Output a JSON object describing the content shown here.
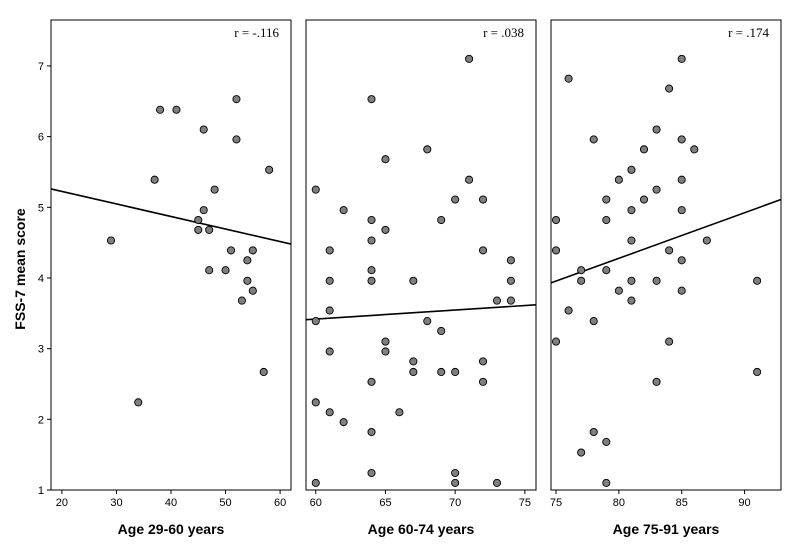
{
  "chart_data": {
    "type": "scatter",
    "ylabel": "FSS-7 mean score",
    "ylim": [
      1,
      7.65
    ],
    "yticks": [
      1,
      2,
      3,
      4,
      5,
      6,
      7
    ],
    "point_color": "#7f7f7f",
    "panels": [
      {
        "xlabel": "Age 29-60 years",
        "annotation": "r = -.116",
        "xlim": [
          18,
          62
        ],
        "xticks": [
          20,
          30,
          40,
          50,
          60
        ],
        "fit_line": {
          "x": [
            18,
            62
          ],
          "y": [
            5.26,
            4.48
          ]
        },
        "points": [
          {
            "x": 29,
            "y": 4.53
          },
          {
            "x": 34,
            "y": 2.24
          },
          {
            "x": 37,
            "y": 5.39
          },
          {
            "x": 38,
            "y": 6.38
          },
          {
            "x": 41,
            "y": 6.38
          },
          {
            "x": 45,
            "y": 4.82
          },
          {
            "x": 45,
            "y": 4.68
          },
          {
            "x": 46,
            "y": 6.1
          },
          {
            "x": 46,
            "y": 4.96
          },
          {
            "x": 47,
            "y": 4.68
          },
          {
            "x": 47,
            "y": 4.11
          },
          {
            "x": 48,
            "y": 5.25
          },
          {
            "x": 50,
            "y": 4.11
          },
          {
            "x": 51,
            "y": 4.39
          },
          {
            "x": 52,
            "y": 6.53
          },
          {
            "x": 52,
            "y": 5.96
          },
          {
            "x": 53,
            "y": 3.68
          },
          {
            "x": 54,
            "y": 4.25
          },
          {
            "x": 54,
            "y": 3.96
          },
          {
            "x": 55,
            "y": 4.39
          },
          {
            "x": 55,
            "y": 3.82
          },
          {
            "x": 57,
            "y": 2.67
          },
          {
            "x": 58,
            "y": 5.53
          }
        ]
      },
      {
        "xlabel": "Age 60-74 years",
        "annotation": "r = .038",
        "xlim": [
          59.3,
          75.8
        ],
        "xticks": [
          60,
          65,
          70,
          75
        ],
        "fit_line": {
          "x": [
            59.3,
            75.8
          ],
          "y": [
            3.41,
            3.62
          ]
        },
        "points": [
          {
            "x": 60,
            "y": 5.25
          },
          {
            "x": 60,
            "y": 3.39
          },
          {
            "x": 60,
            "y": 2.24
          },
          {
            "x": 60,
            "y": 1.1
          },
          {
            "x": 61,
            "y": 4.39
          },
          {
            "x": 61,
            "y": 3.96
          },
          {
            "x": 61,
            "y": 3.54
          },
          {
            "x": 61,
            "y": 2.96
          },
          {
            "x": 61,
            "y": 2.1
          },
          {
            "x": 62,
            "y": 4.96
          },
          {
            "x": 62,
            "y": 1.96
          },
          {
            "x": 64,
            "y": 6.53
          },
          {
            "x": 64,
            "y": 4.82
          },
          {
            "x": 64,
            "y": 4.53
          },
          {
            "x": 64,
            "y": 4.11
          },
          {
            "x": 64,
            "y": 3.96
          },
          {
            "x": 64,
            "y": 2.53
          },
          {
            "x": 64,
            "y": 1.82
          },
          {
            "x": 64,
            "y": 1.24
          },
          {
            "x": 65,
            "y": 5.68
          },
          {
            "x": 65,
            "y": 4.68
          },
          {
            "x": 65,
            "y": 3.1
          },
          {
            "x": 65,
            "y": 2.96
          },
          {
            "x": 66,
            "y": 2.1
          },
          {
            "x": 67,
            "y": 3.96
          },
          {
            "x": 67,
            "y": 2.82
          },
          {
            "x": 67,
            "y": 2.67
          },
          {
            "x": 68,
            "y": 5.82
          },
          {
            "x": 68,
            "y": 3.39
          },
          {
            "x": 69,
            "y": 4.82
          },
          {
            "x": 69,
            "y": 3.25
          },
          {
            "x": 69,
            "y": 2.67
          },
          {
            "x": 70,
            "y": 5.11
          },
          {
            "x": 70,
            "y": 2.67
          },
          {
            "x": 70,
            "y": 1.24
          },
          {
            "x": 70,
            "y": 1.1
          },
          {
            "x": 71,
            "y": 7.1
          },
          {
            "x": 71,
            "y": 5.39
          },
          {
            "x": 72,
            "y": 5.11
          },
          {
            "x": 72,
            "y": 4.39
          },
          {
            "x": 72,
            "y": 2.82
          },
          {
            "x": 72,
            "y": 2.53
          },
          {
            "x": 73,
            "y": 3.68
          },
          {
            "x": 73,
            "y": 1.1
          },
          {
            "x": 74,
            "y": 4.25
          },
          {
            "x": 74,
            "y": 3.96
          },
          {
            "x": 74,
            "y": 3.68
          }
        ]
      },
      {
        "xlabel": "Age 75-91 years",
        "annotation": "r = .174",
        "xlim": [
          74.6,
          92.9
        ],
        "xticks": [
          75,
          80,
          85,
          90
        ],
        "fit_line": {
          "x": [
            74.6,
            92.9
          ],
          "y": [
            3.93,
            5.11
          ]
        },
        "points": [
          {
            "x": 75,
            "y": 4.82
          },
          {
            "x": 75,
            "y": 4.39
          },
          {
            "x": 75,
            "y": 3.1
          },
          {
            "x": 76,
            "y": 6.82
          },
          {
            "x": 76,
            "y": 3.54
          },
          {
            "x": 77,
            "y": 4.11
          },
          {
            "x": 77,
            "y": 3.96
          },
          {
            "x": 77,
            "y": 1.53
          },
          {
            "x": 78,
            "y": 5.96
          },
          {
            "x": 78,
            "y": 3.39
          },
          {
            "x": 78,
            "y": 1.82
          },
          {
            "x": 79,
            "y": 5.11
          },
          {
            "x": 79,
            "y": 4.82
          },
          {
            "x": 79,
            "y": 4.11
          },
          {
            "x": 79,
            "y": 1.68
          },
          {
            "x": 79,
            "y": 1.1
          },
          {
            "x": 80,
            "y": 5.39
          },
          {
            "x": 80,
            "y": 3.82
          },
          {
            "x": 81,
            "y": 5.53
          },
          {
            "x": 81,
            "y": 4.96
          },
          {
            "x": 81,
            "y": 4.53
          },
          {
            "x": 81,
            "y": 3.96
          },
          {
            "x": 81,
            "y": 3.68
          },
          {
            "x": 82,
            "y": 5.82
          },
          {
            "x": 82,
            "y": 5.11
          },
          {
            "x": 83,
            "y": 6.1
          },
          {
            "x": 83,
            "y": 5.25
          },
          {
            "x": 83,
            "y": 3.96
          },
          {
            "x": 83,
            "y": 2.53
          },
          {
            "x": 84,
            "y": 6.68
          },
          {
            "x": 84,
            "y": 4.39
          },
          {
            "x": 84,
            "y": 3.1
          },
          {
            "x": 85,
            "y": 7.1
          },
          {
            "x": 85,
            "y": 5.96
          },
          {
            "x": 85,
            "y": 5.39
          },
          {
            "x": 85,
            "y": 4.96
          },
          {
            "x": 85,
            "y": 4.25
          },
          {
            "x": 85,
            "y": 3.82
          },
          {
            "x": 86,
            "y": 5.82
          },
          {
            "x": 87,
            "y": 4.53
          },
          {
            "x": 91,
            "y": 3.96
          },
          {
            "x": 91,
            "y": 2.67
          }
        ]
      }
    ]
  }
}
